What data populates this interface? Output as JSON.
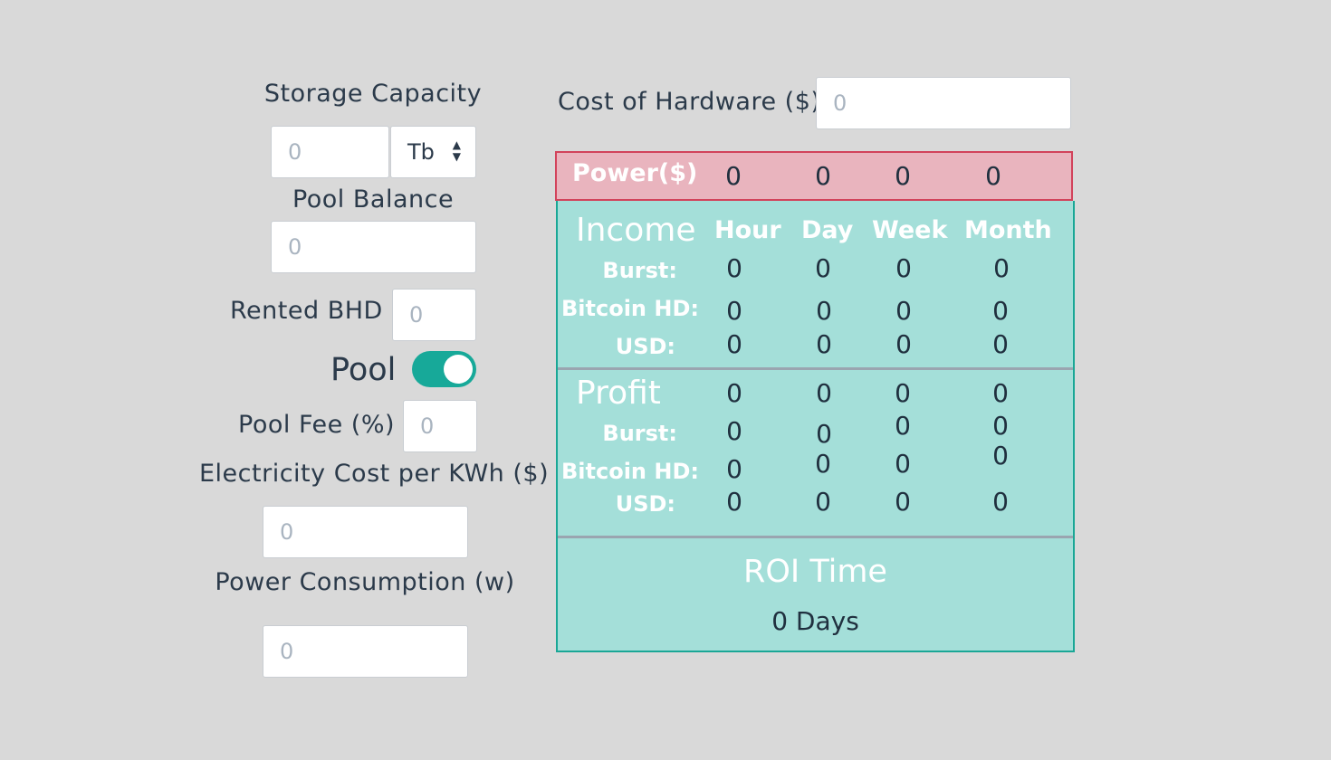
{
  "left_form": {
    "storage_capacity": {
      "label": "Storage Capacity",
      "placeholder": "0",
      "unit_selected": "Tb"
    },
    "pool_balance": {
      "label": "Pool Balance",
      "placeholder": "0"
    },
    "rented_bhd": {
      "label": "Rented BHD",
      "placeholder": "0"
    },
    "pool_toggle": {
      "label": "Pool",
      "state": "on",
      "color": "#17a999"
    },
    "pool_fee": {
      "label": "Pool Fee (%)",
      "placeholder": "0"
    },
    "electricity_cost": {
      "label": "Electricity Cost per KWh ($)",
      "placeholder": "0"
    },
    "power_consumption": {
      "label": "Power Consumption (w)",
      "placeholder": "0"
    }
  },
  "hardware": {
    "label": "Cost of Hardware ($)",
    "placeholder": "0"
  },
  "power": {
    "label": "Power($)",
    "values": [
      "0",
      "0",
      "0",
      "0"
    ],
    "color": "#e9b4be",
    "border_color": "#d2435b"
  },
  "income": {
    "title": "Income",
    "columns": [
      "Hour",
      "Day",
      "Week",
      "Month"
    ],
    "rows": [
      {
        "label": "Burst:",
        "values": [
          "0",
          "0",
          "0",
          "0"
        ]
      },
      {
        "label": "Bitcoin HD:",
        "values": [
          "0",
          "0",
          "0",
          "0"
        ]
      },
      {
        "label": "USD:",
        "values": [
          "0",
          "0",
          "0",
          "0"
        ]
      }
    ],
    "color": "#a4dfd9"
  },
  "profit": {
    "title": "Profit",
    "header_values": [
      "0",
      "0",
      "0",
      "0"
    ],
    "rows": [
      {
        "label": "Burst:",
        "values": [
          "0",
          "0",
          "0",
          "0"
        ]
      },
      {
        "label": "Bitcoin HD:",
        "values": [
          "0",
          "0",
          "0",
          "0"
        ]
      },
      {
        "label": "USD:",
        "values": [
          "0",
          "0",
          "0",
          "0"
        ]
      }
    ]
  },
  "roi": {
    "title": "ROI Time",
    "value": "0 Days"
  }
}
